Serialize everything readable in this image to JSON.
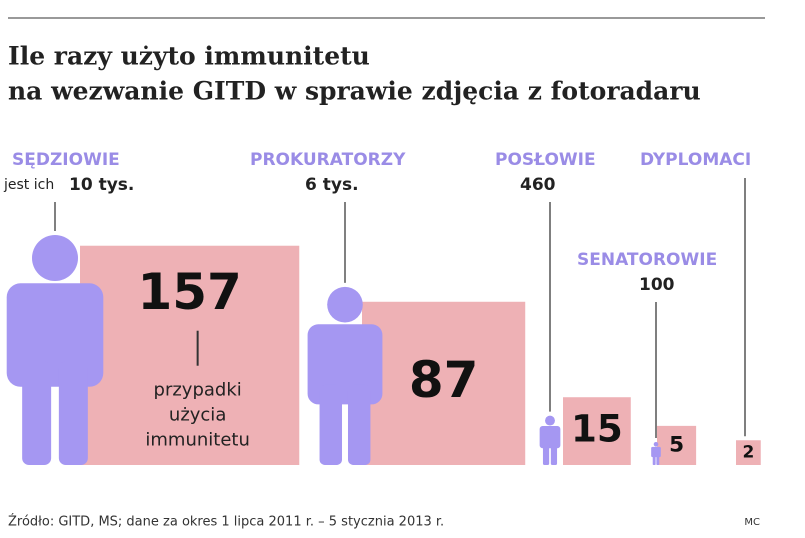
{
  "chart_data": {
    "type": "square",
    "title": [
      "Ile razy użyto immunitetu",
      "na wezwanie GITD w sprawie zdjęcia z fotoradaru"
    ],
    "categories": [
      "SĘDZIOWIE",
      "PROKURATORZY",
      "POSŁOWIE",
      "SENATOROWIE",
      "DYPLOMACI"
    ],
    "population_prefix": "jest ich",
    "populations": [
      10000,
      6000,
      460,
      100,
      null
    ],
    "population_labels": [
      "10 tys.",
      "6 tys.",
      "460",
      "100",
      null
    ],
    "values": [
      157,
      87,
      15,
      5,
      2
    ],
    "annotation": [
      "przypadki",
      "użycia",
      "immunitetu"
    ],
    "color": "#eeb1b5",
    "person_color": "#a597f2",
    "label_color": "#9a8ce6",
    "source": "Źródło: GITD, MS; dane za okres 1 lipca 2011 r. – 5 stycznia 2013 r.",
    "credit": "MC"
  }
}
